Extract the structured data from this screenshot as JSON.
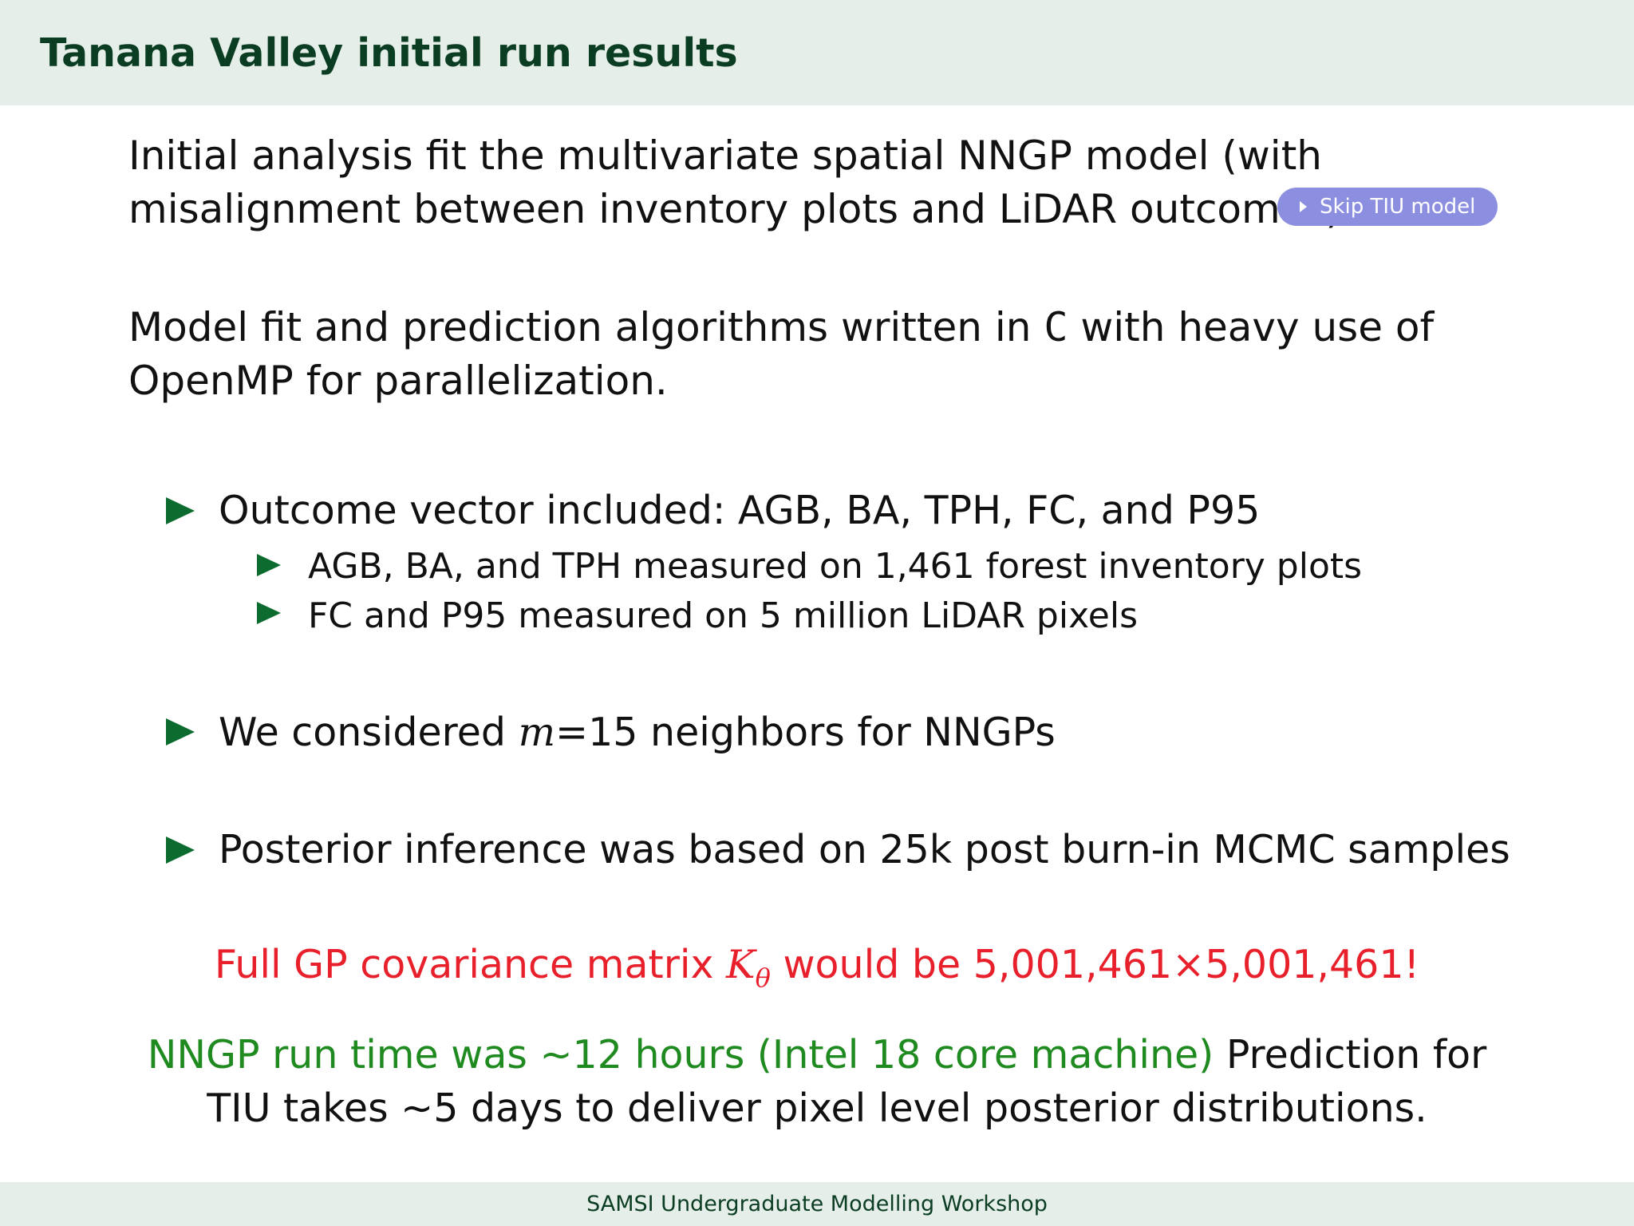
{
  "header": {
    "title": "Tanana Valley initial run results"
  },
  "intro": {
    "line1": "Initial analysis fit the multivariate spatial NNGP model (with",
    "line2": "misalignment between inventory plots and LiDAR outcomes)",
    "skip_button": "Skip TIU model"
  },
  "impl": {
    "line1_a": "Model fit and prediction algorithms written in ",
    "line1_code": "C",
    "line1_b": " with heavy use of",
    "line2": "OpenMP for parallelization."
  },
  "bullets": {
    "b1": "Outcome vector included: AGB, BA, TPH, FC, and P95",
    "b1_sub1": "AGB, BA, and TPH measured on 1,461 forest inventory plots",
    "b1_sub2": "FC and P95 measured on 5 million LiDAR pixels",
    "b2_a": "We considered ",
    "b2_m": "m",
    "b2_b": "=15 neighbors for NNGPs",
    "b3": "Posterior inference was based on 25k post burn-in MCMC samples"
  },
  "highlight": {
    "pre": "Full GP covariance matrix ",
    "k": "K",
    "theta": "θ",
    "post": " would be 5,001,461×5,001,461!"
  },
  "closing": {
    "green": "NNGP run time was ∼12 hours (Intel 18 core machine)",
    "rest": " Prediction for",
    "line2": "TIU takes ∼5 days to deliver pixel level posterior distributions."
  },
  "footer": {
    "text": "SAMSI Undergraduate Modelling Workshop"
  },
  "colors": {
    "title": "#0b3d22",
    "bullet": "#0c6b2e",
    "red": "#e8202b",
    "green": "#1f8a1f",
    "button": "#8c8fe0",
    "band": "#e5eee9"
  }
}
